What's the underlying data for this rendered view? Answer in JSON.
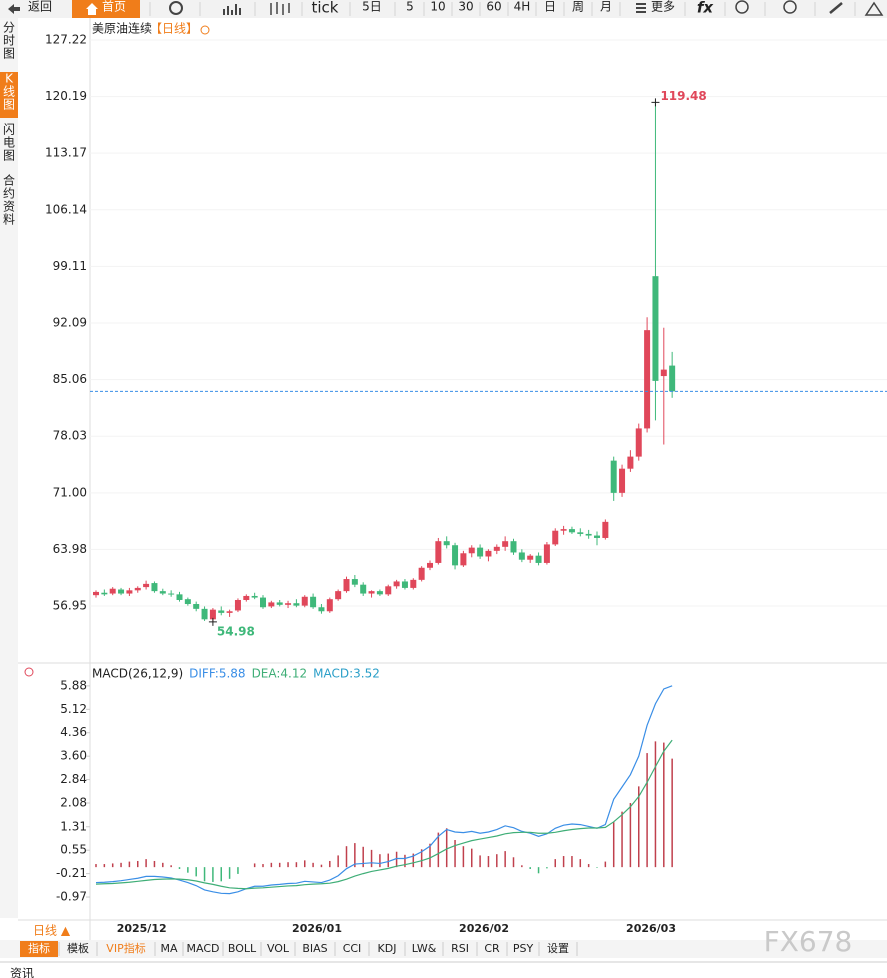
{
  "toolbar": {
    "back": "返回",
    "home": "首页",
    "tick": "tick",
    "periods": [
      "5日",
      "5",
      "10",
      "30",
      "60",
      "4H",
      "日",
      "周",
      "月"
    ],
    "more": "更多",
    "formula": "fx"
  },
  "sidebar": [
    "分时图",
    "K线图",
    "闪电图",
    "合约资料"
  ],
  "chart_data": {
    "type": "candlestick",
    "title": "美原油连续",
    "period_label": "【日线】",
    "up_color": "#e0475a",
    "down_color": "#3fb87a",
    "grid": true,
    "categories": [
      null,
      null,
      "2025/12",
      null,
      null,
      null,
      null,
      null,
      null,
      null,
      null,
      null,
      null,
      null,
      null,
      null,
      null,
      null,
      null,
      null,
      null,
      null,
      null,
      "2026/01",
      null,
      null,
      null,
      null,
      null,
      null,
      null,
      null,
      null,
      null,
      null,
      null,
      null,
      null,
      null,
      null,
      null,
      null,
      null,
      "2026/02",
      null,
      null,
      null,
      null,
      null,
      null,
      null,
      null,
      null,
      null,
      null,
      null,
      null,
      null,
      null,
      null,
      null,
      null,
      null,
      "2026/03",
      null,
      null,
      null,
      null,
      null,
      null
    ],
    "open": [
      58.3,
      58.6,
      58.5,
      59.0,
      58.5,
      58.9,
      59.3,
      59.8,
      58.8,
      58.5,
      58.4,
      57.8,
      57.2,
      56.6,
      55.3,
      56.4,
      56.1,
      56.4,
      57.7,
      58.2,
      58.0,
      56.9,
      57.4,
      57.1,
      57.3,
      57.0,
      58.1,
      56.8,
      56.3,
      57.8,
      58.8,
      60.3,
      59.6,
      58.5,
      58.8,
      58.4,
      59.4,
      60.0,
      59.2,
      60.2,
      61.7,
      62.3,
      65.0,
      64.5,
      62.0,
      63.5,
      64.2,
      63.1,
      63.8,
      64.3,
      65.0,
      63.6,
      62.7,
      63.2,
      62.3,
      64.6,
      66.3,
      66.5,
      66.1,
      65.9,
      65.7,
      65.4,
      75.0,
      71.0,
      74.0,
      75.5,
      79.0,
      97.9,
      85.5,
      86.8
    ],
    "high": [
      58.9,
      59.0,
      59.3,
      59.2,
      59.2,
      59.4,
      60.1,
      60.0,
      59.1,
      58.9,
      58.7,
      58.0,
      57.5,
      56.9,
      56.7,
      56.9,
      56.5,
      57.9,
      58.4,
      58.6,
      58.3,
      57.6,
      57.7,
      57.6,
      57.8,
      58.3,
      58.5,
      57.2,
      58.0,
      59.0,
      60.6,
      60.8,
      59.9,
      58.9,
      59.0,
      59.6,
      60.2,
      60.3,
      60.4,
      61.9,
      62.6,
      65.4,
      65.6,
      64.8,
      63.8,
      64.5,
      64.6,
      64.0,
      64.6,
      65.6,
      65.3,
      64.0,
      63.4,
      63.6,
      64.9,
      66.6,
      66.9,
      66.8,
      66.6,
      66.4,
      66.2,
      67.7,
      75.5,
      74.5,
      76.3,
      79.6,
      92.8,
      119.48,
      91.5,
      88.5
    ],
    "low": [
      58.0,
      58.2,
      58.3,
      58.3,
      58.2,
      58.6,
      59.0,
      58.6,
      58.3,
      58.1,
      57.5,
      57.0,
      56.3,
      55.1,
      54.98,
      55.8,
      55.6,
      56.2,
      57.5,
      57.8,
      56.6,
      56.7,
      56.9,
      56.7,
      56.8,
      56.8,
      56.6,
      56.0,
      56.1,
      57.6,
      58.6,
      59.3,
      58.2,
      58.0,
      58.2,
      58.2,
      59.1,
      59.0,
      59.0,
      60.0,
      61.4,
      62.1,
      64.1,
      61.5,
      61.8,
      63.0,
      62.8,
      62.5,
      63.4,
      63.8,
      63.3,
      62.4,
      62.3,
      62.0,
      62.1,
      64.4,
      65.8,
      65.9,
      65.6,
      65.3,
      64.5,
      65.2,
      70.0,
      70.5,
      73.6,
      75.0,
      78.5,
      80.0,
      77.0,
      82.8
    ],
    "close": [
      58.7,
      58.4,
      59.1,
      58.5,
      58.9,
      59.2,
      59.7,
      58.8,
      58.5,
      58.4,
      57.7,
      57.2,
      56.6,
      55.3,
      56.5,
      56.1,
      56.3,
      57.7,
      58.2,
      58.0,
      56.8,
      57.4,
      57.1,
      57.3,
      57.0,
      58.1,
      56.8,
      56.3,
      57.8,
      58.8,
      60.3,
      59.6,
      58.5,
      58.8,
      58.4,
      59.4,
      60.0,
      59.2,
      60.2,
      61.7,
      62.3,
      65.0,
      64.5,
      62.0,
      63.5,
      64.2,
      63.1,
      63.8,
      64.3,
      65.0,
      63.6,
      62.7,
      63.2,
      62.3,
      64.6,
      66.3,
      66.5,
      66.1,
      65.9,
      65.7,
      65.4,
      67.4,
      71.0,
      74.0,
      75.5,
      79.0,
      91.2,
      84.9,
      86.3,
      83.6
    ],
    "ylim": [
      50.25,
      128.71
    ],
    "yticks": [
      127.22,
      120.19,
      113.17,
      106.14,
      99.11,
      92.09,
      85.06,
      78.03,
      {
        "value": 71,
        "label": "71.00"
      },
      63.98,
      56.95
    ],
    "macd": {
      "title": "MACD(26,12,9)",
      "series": [
        {
          "label": "DIFF:5.88",
          "color": "#3a8ee6",
          "values": [
            -0.5,
            -0.49,
            -0.47,
            -0.44,
            -0.4,
            -0.36,
            -0.3,
            -0.3,
            -0.32,
            -0.35,
            -0.42,
            -0.5,
            -0.6,
            -0.74,
            -0.8,
            -0.85,
            -0.86,
            -0.8,
            -0.7,
            -0.62,
            -0.62,
            -0.58,
            -0.56,
            -0.53,
            -0.52,
            -0.46,
            -0.48,
            -0.5,
            -0.42,
            -0.28,
            -0.05,
            0.1,
            0.12,
            0.14,
            0.12,
            0.18,
            0.28,
            0.28,
            0.36,
            0.5,
            0.68,
            1.0,
            1.22,
            1.14,
            1.12,
            1.16,
            1.1,
            1.14,
            1.22,
            1.34,
            1.28,
            1.16,
            1.1,
            1.0,
            1.08,
            1.26,
            1.36,
            1.4,
            1.38,
            1.32,
            1.26,
            1.38,
            2.2,
            2.6,
            3.0,
            3.6,
            4.6,
            5.3,
            5.78,
            5.88
          ]
        },
        {
          "label": "DEA:4.12",
          "color": "#3fae77",
          "values": [
            -0.55,
            -0.54,
            -0.53,
            -0.51,
            -0.49,
            -0.46,
            -0.43,
            -0.4,
            -0.39,
            -0.38,
            -0.39,
            -0.41,
            -0.45,
            -0.51,
            -0.56,
            -0.62,
            -0.67,
            -0.69,
            -0.7,
            -0.68,
            -0.67,
            -0.65,
            -0.63,
            -0.61,
            -0.6,
            -0.57,
            -0.55,
            -0.54,
            -0.52,
            -0.47,
            -0.39,
            -0.29,
            -0.21,
            -0.14,
            -0.09,
            -0.04,
            0.03,
            0.08,
            0.14,
            0.21,
            0.3,
            0.44,
            0.59,
            0.7,
            0.78,
            0.86,
            0.91,
            0.96,
            1.01,
            1.08,
            1.12,
            1.13,
            1.13,
            1.1,
            1.1,
            1.13,
            1.18,
            1.22,
            1.25,
            1.27,
            1.27,
            1.29,
            1.47,
            1.7,
            1.96,
            2.29,
            2.75,
            3.26,
            3.76,
            4.12
          ]
        }
      ],
      "hist": {
        "label": "MACD:3.52",
        "color": "#2b9fc8",
        "up_color": "#c0404d",
        "down_color": "#3fb87a",
        "values": [
          0.1,
          0.1,
          0.12,
          0.14,
          0.18,
          0.2,
          0.26,
          0.2,
          0.14,
          0.06,
          -0.06,
          -0.18,
          -0.3,
          -0.46,
          -0.48,
          -0.46,
          -0.38,
          -0.22,
          0.0,
          0.12,
          0.1,
          0.14,
          0.14,
          0.16,
          0.16,
          0.22,
          0.14,
          0.08,
          0.2,
          0.38,
          0.68,
          0.78,
          0.66,
          0.56,
          0.42,
          0.44,
          0.5,
          0.4,
          0.44,
          0.58,
          0.76,
          1.12,
          1.26,
          0.88,
          0.68,
          0.6,
          0.38,
          0.36,
          0.42,
          0.52,
          0.32,
          0.06,
          -0.06,
          -0.2,
          -0.04,
          0.26,
          0.36,
          0.36,
          0.26,
          0.1,
          -0.02,
          0.18,
          1.46,
          1.8,
          2.08,
          2.62,
          3.7,
          4.08,
          4.04,
          3.52
        ]
      },
      "ylim": [
        -1.65,
        6.33
      ],
      "yticks": [
        5.88,
        5.12,
        4.36,
        {
          "value": 3.6,
          "label": "3.60"
        },
        2.84,
        2.08,
        1.31,
        0.55,
        -0.21,
        -0.97
      ]
    }
  },
  "period_button": "日线 ▲",
  "bottom_tabs": [
    "指标",
    "模板",
    "VIP指标",
    "MA",
    "MACD",
    "BOLL",
    "VOL",
    "BIAS",
    "CCI",
    "KDJ",
    "LW&",
    "RSI",
    "CR",
    "PSY",
    "设置"
  ],
  "footer": "资讯",
  "watermark": "FX678"
}
